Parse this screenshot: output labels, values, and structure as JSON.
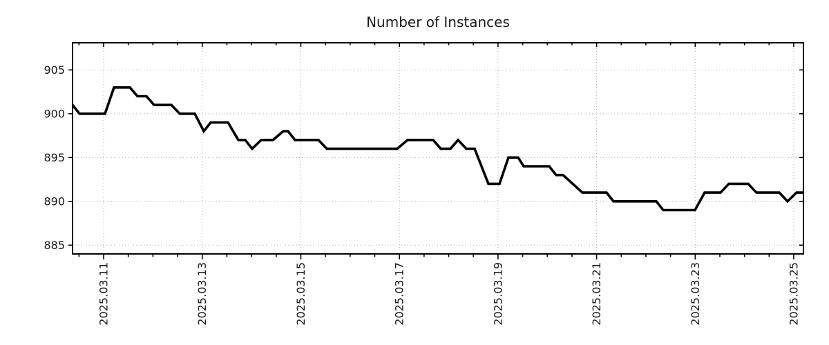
{
  "chart_data": {
    "type": "line",
    "title": "Number of Instances",
    "xlabel": "",
    "ylabel": "",
    "legend": "none",
    "grid": "dotted major gridlines on both axes",
    "line_color": "#000000",
    "grid_color": "#b0b0b0",
    "axis_color": "#000000",
    "text_color": "#1a1a1a",
    "x_axis": {
      "unit": "days since 2025-03-10 00:00",
      "range": [
        0.369,
        15.196
      ],
      "major_ticks": [
        {
          "t": 1,
          "label": "2025.03.11"
        },
        {
          "t": 3,
          "label": "2025.03.13"
        },
        {
          "t": 5,
          "label": "2025.03.15"
        },
        {
          "t": 7,
          "label": "2025.03.17"
        },
        {
          "t": 9,
          "label": "2025.03.19"
        },
        {
          "t": 11,
          "label": "2025.03.21"
        },
        {
          "t": 13,
          "label": "2025.03.23"
        },
        {
          "t": 15,
          "label": "2025.03.25"
        }
      ],
      "minor_tick_interval": 0.5
    },
    "y_axis": {
      "range": [
        884.0,
        908.1
      ],
      "major_ticks": [
        885,
        890,
        895,
        900,
        905
      ]
    },
    "series": [
      {
        "name": "instances",
        "points": [
          [
            0.369,
            901
          ],
          [
            0.51,
            900
          ],
          [
            1.028,
            900
          ],
          [
            1.21,
            903
          ],
          [
            1.533,
            903
          ],
          [
            1.687,
            902
          ],
          [
            1.869,
            902
          ],
          [
            2.023,
            901
          ],
          [
            2.373,
            901
          ],
          [
            2.542,
            900
          ],
          [
            2.85,
            900
          ],
          [
            3.032,
            898
          ],
          [
            3.172,
            899
          ],
          [
            3.523,
            899
          ],
          [
            3.733,
            897
          ],
          [
            3.873,
            897
          ],
          [
            4.013,
            896
          ],
          [
            4.195,
            897
          ],
          [
            4.434,
            897
          ],
          [
            4.644,
            898
          ],
          [
            4.742,
            898
          ],
          [
            4.882,
            897
          ],
          [
            5.358,
            897
          ],
          [
            5.527,
            896
          ],
          [
            6.956,
            896
          ],
          [
            7.166,
            897
          ],
          [
            7.685,
            897
          ],
          [
            7.839,
            896
          ],
          [
            8.035,
            896
          ],
          [
            8.189,
            897
          ],
          [
            8.357,
            896
          ],
          [
            8.525,
            896
          ],
          [
            8.806,
            892
          ],
          [
            9.03,
            892
          ],
          [
            9.212,
            895
          ],
          [
            9.408,
            895
          ],
          [
            9.52,
            894
          ],
          [
            10.039,
            894
          ],
          [
            10.179,
            893
          ],
          [
            10.319,
            893
          ],
          [
            10.711,
            891
          ],
          [
            11.202,
            891
          ],
          [
            11.342,
            890
          ],
          [
            12.211,
            890
          ],
          [
            12.351,
            889
          ],
          [
            12.996,
            889
          ],
          [
            13.192,
            891
          ],
          [
            13.514,
            891
          ],
          [
            13.682,
            892
          ],
          [
            14.075,
            892
          ],
          [
            14.243,
            891
          ],
          [
            14.705,
            891
          ],
          [
            14.874,
            890
          ],
          [
            15.056,
            891
          ],
          [
            15.196,
            891
          ]
        ]
      }
    ]
  }
}
